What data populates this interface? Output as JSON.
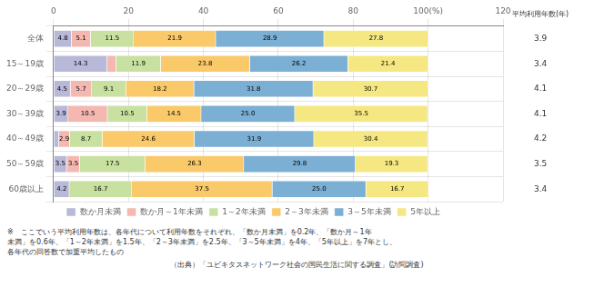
{
  "chart_data": {
    "type": "bar",
    "orientation": "horizontal",
    "stacked": true,
    "data_labels": true,
    "grid": true,
    "legend": "bottom",
    "categories": [
      "全体",
      "15～19歳",
      "20～29歳",
      "30～39歳",
      "40～49歳",
      "50～59歳",
      "60歳以上"
    ],
    "series": [
      {
        "name": "数か月未満",
        "color": "#b8b8d8",
        "values": [
          4.8,
          14.3,
          4.5,
          3.9,
          1.4,
          3.5,
          4.2
        ],
        "value_labels": [
          "4.8",
          "14.3",
          "4.5",
          "3.9",
          null,
          "3.5",
          "4.2"
        ]
      },
      {
        "name": "数か月～1年未満",
        "color": "#f4b8b0",
        "values": [
          5.1,
          2.4,
          5.7,
          10.5,
          2.9,
          3.5,
          0.0
        ],
        "value_labels": [
          "5.1",
          null,
          "5.7",
          "10.5",
          "2.9",
          "3.5",
          null
        ]
      },
      {
        "name": "1～2年未満",
        "color": "#c8e0a0",
        "values": [
          11.5,
          11.9,
          9.1,
          10.5,
          8.7,
          17.5,
          16.7
        ],
        "value_labels": [
          "11.5",
          "11.9",
          "9.1",
          "10.5",
          "8.7",
          "17.5",
          "16.7"
        ]
      },
      {
        "name": "2～3年未満",
        "color": "#f9c96a",
        "values": [
          21.9,
          23.8,
          18.2,
          14.5,
          24.6,
          26.3,
          37.5
        ],
        "value_labels": [
          "21.9",
          "23.8",
          "18.2",
          "14.5",
          "24.6",
          "26.3",
          "37.5"
        ]
      },
      {
        "name": "3～5年未満",
        "color": "#7bafd4",
        "values": [
          28.9,
          26.2,
          31.8,
          25.0,
          31.9,
          29.8,
          25.0
        ],
        "value_labels": [
          "28.9",
          "26.2",
          "31.8",
          "25.0",
          "31.9",
          "29.8",
          "25.0"
        ]
      },
      {
        "name": "5年以上",
        "color": "#f5e882",
        "values": [
          27.8,
          21.4,
          30.7,
          35.5,
          30.4,
          19.3,
          16.7
        ],
        "value_labels": [
          "27.8",
          "21.4",
          "30.7",
          "35.5",
          "30.4",
          "19.3",
          "16.7"
        ]
      }
    ],
    "xlim": [
      0,
      120
    ],
    "xticks": [
      0,
      20,
      40,
      60,
      80,
      {
        "value": 100,
        "label": "100(%)"
      },
      120
    ],
    "avg_years_label": "平均利用年数(年)",
    "avg_years": [
      3.9,
      3.4,
      4.1,
      4.1,
      4.2,
      3.5,
      3.4
    ],
    "notes": [
      "※　ここでいう平均利用年数は、各年代について利用年数をそれぞれ、「数か月未満」を0.2年、「数か月～1年",
      "未満」を0.6年、「1～2年未満」を1.5年、「2～3年未満」を2.5年、「3～5年未満」を4年、「5年以上」を7年とし、",
      "各年代の回答数で加重平均したもの"
    ],
    "source": "（出典）「ユビキタスネットワーク社会の国民生活に関する調査」(訪問調査)"
  }
}
